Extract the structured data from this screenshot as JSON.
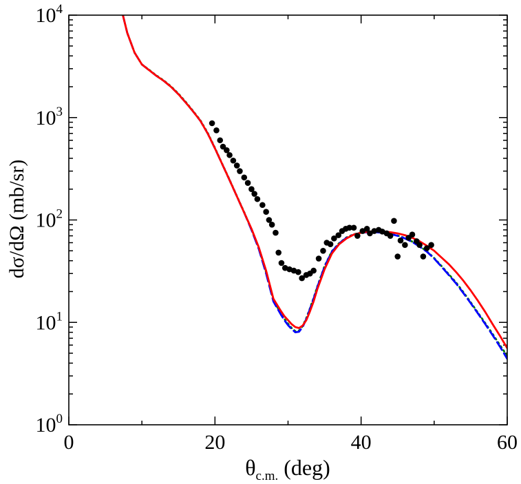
{
  "chart_data": {
    "type": "scatter",
    "xlabel": "θ",
    "xlabel_sub": "c.m.",
    "xlabel_unit": " (deg)",
    "ylabel": "dσ/dΩ (mb/sr)",
    "xlim": [
      0,
      60
    ],
    "ylim": [
      1,
      10000
    ],
    "yscale": "log",
    "x_ticks": [
      "0",
      "20",
      "40",
      "60"
    ],
    "y_ticks": [
      {
        "base": "10",
        "exp": "0"
      },
      {
        "base": "10",
        "exp": "1"
      },
      {
        "base": "10",
        "exp": "2"
      },
      {
        "base": "10",
        "exp": "3"
      },
      {
        "base": "10",
        "exp": "4"
      }
    ],
    "experimental": {
      "name": "data",
      "color": "#000000",
      "x": [
        19.6,
        20.2,
        20.7,
        21.1,
        21.6,
        22.0,
        22.5,
        23.0,
        23.4,
        24.0,
        24.5,
        25.0,
        25.4,
        25.8,
        26.5,
        27.0,
        27.4,
        27.8,
        28.3,
        28.7,
        29.1,
        29.6,
        30.2,
        30.8,
        31.4,
        31.9,
        32.5,
        33.0,
        33.5,
        34.2,
        34.8,
        35.3,
        35.8,
        36.3,
        36.9,
        37.4,
        37.9,
        38.4,
        39.0,
        39.5,
        40.2,
        40.8,
        41.2,
        41.8,
        42.4,
        42.9,
        43.5,
        44.0,
        44.5,
        45.0,
        45.4,
        46.0,
        46.5,
        47.0,
        47.6,
        48.0,
        48.5,
        49.0,
        49.6
      ],
      "y": [
        880,
        750,
        600,
        520,
        480,
        430,
        380,
        340,
        300,
        260,
        230,
        200,
        180,
        160,
        140,
        120,
        100,
        90,
        75,
        48,
        38,
        34,
        33,
        32,
        31,
        27,
        29,
        30,
        32,
        42,
        50,
        60,
        58,
        66,
        71,
        78,
        82,
        84,
        84,
        70,
        78,
        82,
        74,
        78,
        80,
        77,
        74,
        70,
        98,
        44,
        63,
        57,
        67,
        72,
        62,
        57,
        44,
        53,
        57
      ]
    },
    "series": [
      {
        "name": "red-solid",
        "color": "#ff0000",
        "dash": "solid",
        "x": [
          7.4,
          8,
          9,
          10,
          11,
          12,
          13,
          14,
          15,
          16,
          17,
          18,
          19,
          20,
          21,
          22,
          23,
          24,
          25,
          26,
          27,
          28,
          29,
          29.5,
          30,
          30.5,
          31,
          31.5,
          32,
          32.5,
          33,
          33.5,
          34,
          35,
          36,
          37,
          38,
          39,
          40,
          41,
          42,
          43,
          44,
          45,
          46,
          47,
          48,
          49,
          50,
          51,
          52,
          53,
          54,
          55,
          56,
          57,
          58,
          59,
          60
        ],
        "y": [
          10000,
          6700,
          4300,
          3300,
          2900,
          2550,
          2280,
          1990,
          1690,
          1400,
          1150,
          930,
          700,
          500,
          350,
          245,
          170,
          118,
          82,
          54,
          32,
          17,
          13,
          11.5,
          10.5,
          9.6,
          9.0,
          8.8,
          9.3,
          10.5,
          12.8,
          16,
          21,
          33,
          47,
          58,
          66,
          72,
          75,
          77,
          77.5,
          77,
          76,
          74,
          71,
          67,
          62,
          56,
          50,
          43,
          37,
          31,
          25.5,
          20.5,
          16.2,
          12.6,
          9.6,
          7.4,
          5.6
        ]
      },
      {
        "name": "blue-dash",
        "color": "#0000ff",
        "dash": "dash",
        "x": [
          7.4,
          8,
          9,
          10,
          11,
          12,
          13,
          14,
          15,
          16,
          17,
          18,
          19,
          20,
          21,
          22,
          23,
          24,
          25,
          26,
          27,
          28,
          29,
          29.5,
          30,
          30.5,
          31,
          31.5,
          32,
          32.5,
          33,
          33.5,
          34,
          35,
          36,
          37,
          38,
          39,
          40,
          41,
          42,
          43,
          44,
          45,
          46,
          47,
          48,
          49,
          50,
          51,
          52,
          53,
          54,
          55,
          56,
          57,
          58,
          59,
          60
        ],
        "y": [
          10000,
          6700,
          4300,
          3300,
          2900,
          2550,
          2280,
          1990,
          1690,
          1400,
          1150,
          930,
          700,
          500,
          350,
          245,
          170,
          118,
          80,
          52,
          30,
          16,
          12,
          10.5,
          9.4,
          8.6,
          8.0,
          8.1,
          9.0,
          10.8,
          13.5,
          17,
          22,
          35,
          49,
          59,
          67,
          72,
          75,
          76,
          76,
          75,
          73,
          70,
          66,
          61,
          55,
          49,
          42,
          35,
          29,
          24,
          19.3,
          15.4,
          12.2,
          9.6,
          7.5,
          5.8,
          4.4
        ]
      },
      {
        "name": "green-dot",
        "color": "#007a00",
        "dash": "dot",
        "x": [
          7.4,
          8,
          9,
          10,
          11,
          12,
          13,
          14,
          15,
          16,
          17,
          18,
          19,
          20,
          21,
          22,
          23,
          24,
          25,
          26,
          27,
          28,
          29,
          29.5,
          30,
          30.5,
          31,
          31.5,
          32,
          32.5,
          33,
          33.5,
          34,
          35,
          36,
          37,
          38,
          39,
          40,
          41,
          42,
          43,
          44,
          45,
          46,
          47,
          48,
          49,
          50,
          51,
          52,
          53,
          54,
          55,
          56,
          57,
          58,
          59,
          60
        ],
        "y": [
          10000,
          6700,
          4300,
          3300,
          2920,
          2570,
          2300,
          2010,
          1710,
          1420,
          1160,
          940,
          710,
          505,
          352,
          247,
          171,
          119,
          81,
          53,
          31,
          16.5,
          12.3,
          10.8,
          9.7,
          8.8,
          8.2,
          8.3,
          9.2,
          11,
          13.7,
          17.3,
          22.3,
          35.5,
          49.5,
          59.5,
          67.5,
          72.5,
          75.5,
          76.5,
          76.5,
          75.5,
          73.5,
          70.5,
          66.5,
          61.5,
          55.5,
          49.5,
          42.5,
          35.5,
          29.5,
          24.5,
          19.7,
          15.7,
          12.4,
          9.8,
          7.7,
          6.0,
          4.7
        ]
      }
    ]
  }
}
